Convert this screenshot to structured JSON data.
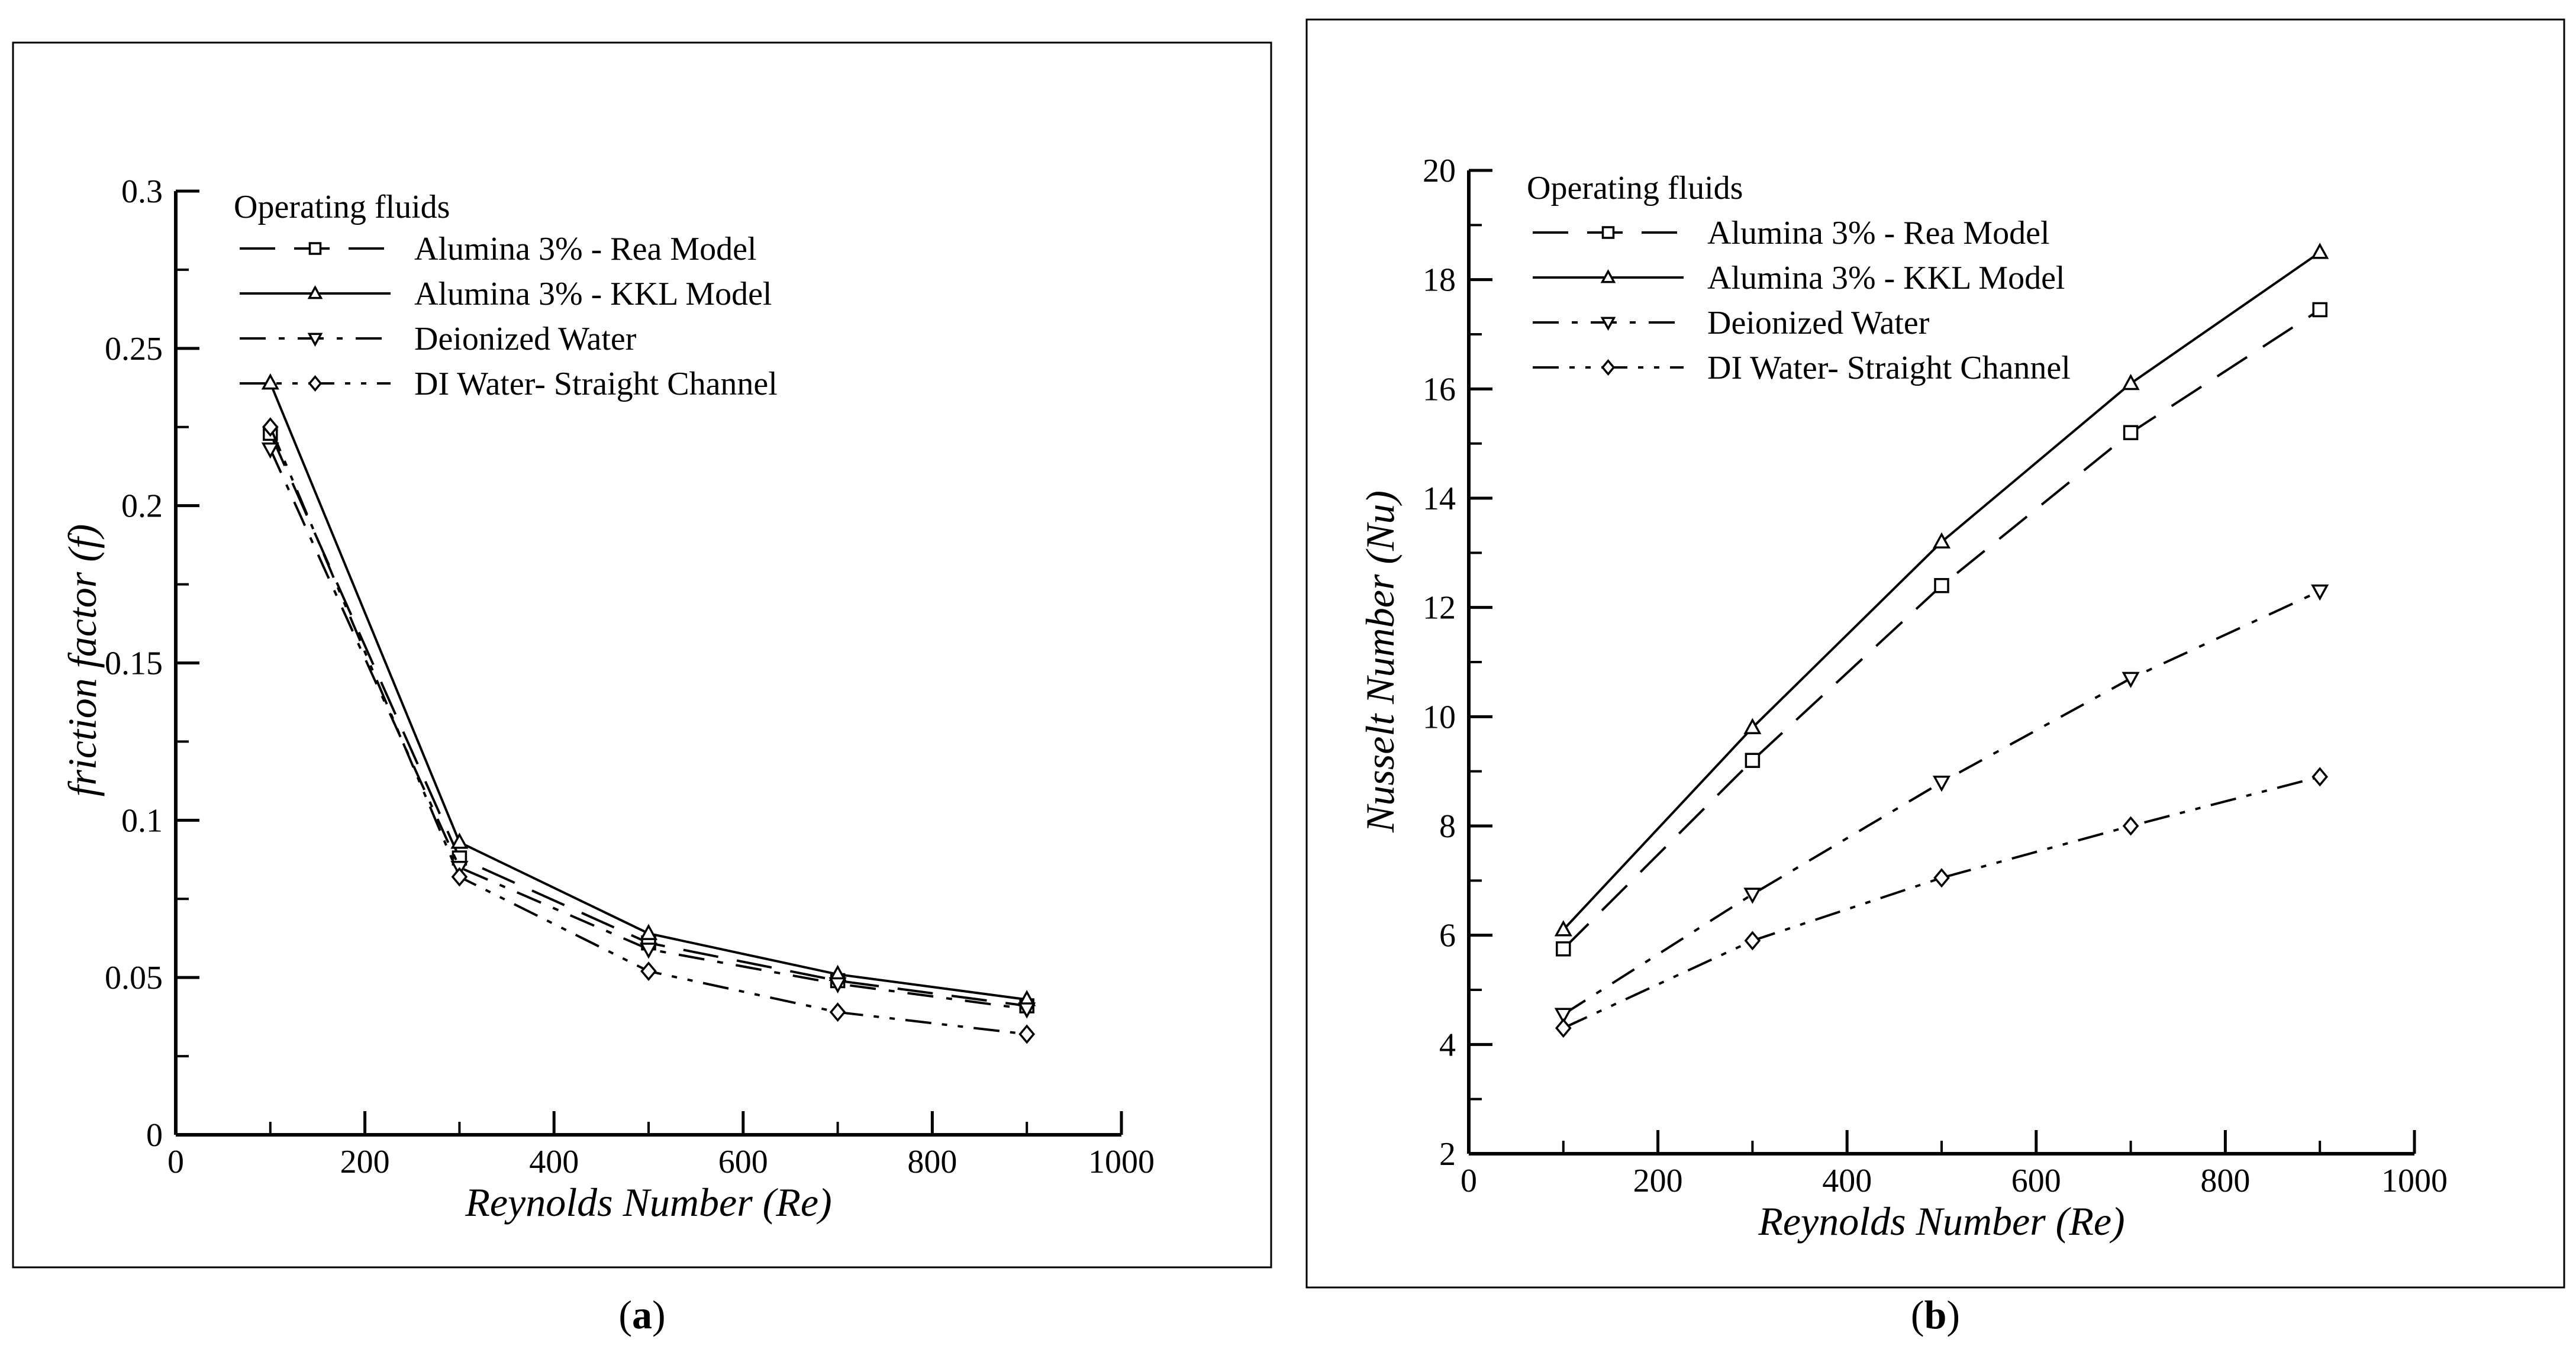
{
  "figure": {
    "panels": [
      "(a)",
      "(b)"
    ]
  },
  "chart_data": [
    {
      "type": "line",
      "panel_label": "(a)",
      "panel_label_parts": {
        "open": "(",
        "letter": "a",
        "close": ")"
      },
      "xlabel": "Reynolds Number (Re)",
      "ylabel": "friction factor (f)",
      "xlim": [
        0,
        1000
      ],
      "ylim": [
        0,
        0.3
      ],
      "xticks": [
        0,
        200,
        400,
        600,
        800,
        1000
      ],
      "xtick_labels": [
        "0",
        "200",
        "400",
        "600",
        "800",
        "1000"
      ],
      "yticks": [
        0,
        0.05,
        0.1,
        0.15,
        0.2,
        0.25,
        0.3
      ],
      "ytick_labels": [
        "0",
        "0.05",
        "0.1",
        "0.15",
        "0.2",
        "0.25",
        "0.3"
      ],
      "grid": false,
      "legend": {
        "title": "Operating fluids",
        "location": "top-left"
      },
      "x": [
        100,
        300,
        500,
        700,
        900
      ],
      "series": [
        {
          "name": "Alumina 3% - Rea Model",
          "marker": "square",
          "dash": "dashed",
          "values": [
            0.223,
            0.088,
            0.061,
            0.049,
            0.041
          ]
        },
        {
          "name": "Alumina 3% - KKL Model",
          "marker": "triangle-up",
          "dash": "solid",
          "values": [
            0.239,
            0.093,
            0.064,
            0.051,
            0.043
          ]
        },
        {
          "name": "Deionized Water",
          "marker": "triangle-down",
          "dash": "dashdot",
          "values": [
            0.218,
            0.085,
            0.059,
            0.048,
            0.04
          ]
        },
        {
          "name": "DI Water- Straight Channel",
          "marker": "diamond",
          "dash": "dashdotdot",
          "values": [
            0.225,
            0.082,
            0.052,
            0.039,
            0.032
          ]
        }
      ]
    },
    {
      "type": "line",
      "panel_label": "(b)",
      "panel_label_parts": {
        "open": "(",
        "letter": "b",
        "close": ")"
      },
      "xlabel": "Reynolds Number (Re)",
      "ylabel": "Nusselt Number (Nu)",
      "xlim": [
        0,
        1000
      ],
      "ylim": [
        2,
        20
      ],
      "xticks": [
        0,
        200,
        400,
        600,
        800,
        1000
      ],
      "xtick_labels": [
        "0",
        "200",
        "400",
        "600",
        "800",
        "1000"
      ],
      "yticks": [
        2,
        4,
        6,
        8,
        10,
        12,
        14,
        16,
        18,
        20
      ],
      "ytick_labels": [
        "2",
        "4",
        "6",
        "8",
        "10",
        "12",
        "14",
        "16",
        "18",
        "20"
      ],
      "grid": false,
      "legend": {
        "title": "Operating fluids",
        "location": "top-left"
      },
      "x": [
        100,
        300,
        500,
        700,
        900
      ],
      "series": [
        {
          "name": "Alumina 3% - Rea Model",
          "marker": "square",
          "dash": "dashed",
          "values": [
            5.75,
            9.2,
            12.4,
            15.2,
            17.45
          ]
        },
        {
          "name": "Alumina 3% - KKL Model",
          "marker": "triangle-up",
          "dash": "solid",
          "values": [
            6.1,
            9.8,
            13.2,
            16.1,
            18.5
          ]
        },
        {
          "name": "Deionized Water",
          "marker": "triangle-down",
          "dash": "dashdot",
          "values": [
            4.55,
            6.75,
            8.8,
            10.7,
            12.3
          ]
        },
        {
          "name": "DI Water- Straight Channel",
          "marker": "diamond",
          "dash": "dashdotdot",
          "values": [
            4.3,
            5.9,
            7.05,
            8.0,
            8.9
          ]
        }
      ]
    }
  ]
}
